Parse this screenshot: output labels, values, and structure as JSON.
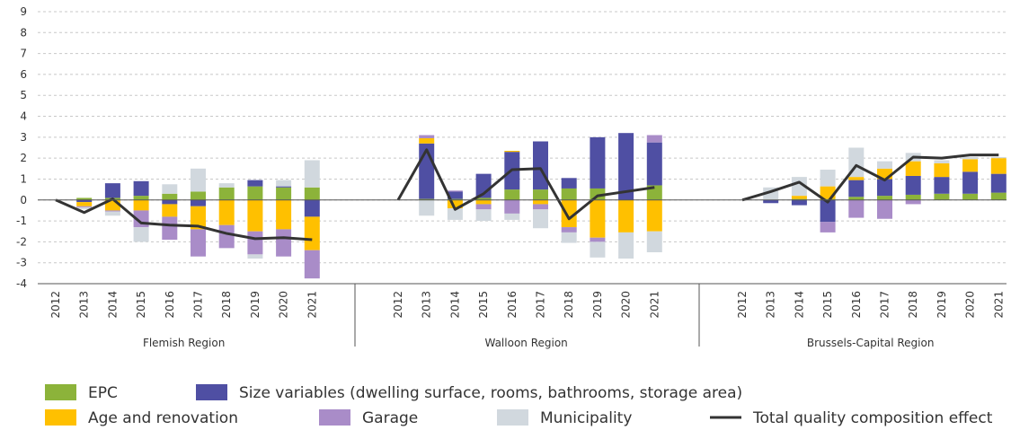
{
  "chart_data": {
    "type": "bar",
    "ylim": [
      -4,
      9
    ],
    "yticks": [
      -4,
      -3,
      -2,
      -1,
      0,
      1,
      2,
      3,
      4,
      5,
      6,
      7,
      8,
      9
    ],
    "grid": true,
    "series": [
      {
        "name": "EPC",
        "color": "#8cb33a",
        "type": "bar"
      },
      {
        "name": "Size variables (dwelling surface, rooms, bathrooms, storage area)",
        "color": "#4f4fa3",
        "type": "bar"
      },
      {
        "name": "Age and renovation",
        "color": "#ffc000",
        "type": "bar"
      },
      {
        "name": "Garage",
        "color": "#a98cc8",
        "type": "bar"
      },
      {
        "name": "Municipality",
        "color": "#d1d8de",
        "type": "bar"
      },
      {
        "name": "Total quality composition effect",
        "color": "#333333",
        "type": "line"
      }
    ],
    "groups": [
      {
        "name": "Flemish Region",
        "categories": [
          "2012",
          "2013",
          "2014",
          "2015",
          "2016",
          "2017",
          "2018",
          "2019",
          "2020",
          "2021"
        ],
        "series": [
          {
            "values": [
              0,
              0.1,
              0.1,
              0.2,
              0.3,
              0.4,
              0.6,
              0.65,
              0.6,
              0.6
            ]
          },
          {
            "values": [
              0,
              -0.1,
              0.7,
              0.7,
              -0.2,
              -0.3,
              0,
              0.3,
              0.05,
              -0.8
            ]
          },
          {
            "values": [
              0,
              -0.2,
              -0.5,
              -0.5,
              -0.6,
              -1.1,
              -1.2,
              -1.5,
              -1.4,
              -1.6
            ]
          },
          {
            "values": [
              0,
              -0.05,
              -0.05,
              -0.8,
              -1.1,
              -1.3,
              -1.1,
              -1.1,
              -1.3,
              -1.35
            ]
          },
          {
            "values": [
              0,
              -0.1,
              -0.2,
              -0.7,
              0.45,
              1.1,
              0.2,
              -0.2,
              0.3,
              1.3
            ]
          },
          {
            "values": [
              0,
              -0.6,
              0.05,
              -1.1,
              -1.2,
              -1.25,
              -1.6,
              -1.85,
              -1.8,
              -1.9
            ]
          }
        ]
      },
      {
        "name": "Walloon Region",
        "categories": [
          "2012",
          "2013",
          "2014",
          "2015",
          "2016",
          "2017",
          "2018",
          "2019",
          "2020",
          "2021"
        ],
        "series": [
          {
            "values": [
              0,
              0.05,
              0.05,
              0.1,
              0.5,
              0.5,
              0.55,
              0.55,
              0,
              0.7
            ]
          },
          {
            "values": [
              0,
              2.65,
              0.35,
              1.15,
              1.8,
              2.3,
              0.5,
              2.45,
              3.2,
              2.05
            ]
          },
          {
            "values": [
              0,
              0.25,
              -0.4,
              -0.2,
              0.05,
              -0.2,
              -1.3,
              -1.8,
              -1.55,
              -1.5
            ]
          },
          {
            "values": [
              0,
              0.15,
              0.05,
              -0.25,
              -0.65,
              -0.25,
              -0.25,
              -0.2,
              0,
              0.35
            ]
          },
          {
            "values": [
              0,
              -0.75,
              -0.55,
              -0.55,
              -0.3,
              -0.9,
              -0.5,
              -0.75,
              -1.25,
              -1
            ]
          },
          {
            "values": [
              0,
              2.4,
              -0.45,
              0.3,
              1.45,
              1.5,
              -0.9,
              0.2,
              0.4,
              0.6
            ]
          }
        ]
      },
      {
        "name": "Brussels-Capital Region",
        "categories": [
          "2012",
          "2013",
          "2014",
          "2015",
          "2016",
          "2017",
          "2018",
          "2019",
          "2020",
          "2021"
        ],
        "series": [
          {
            "values": [
              0,
              0,
              0.05,
              0.05,
              0.15,
              0.2,
              0.25,
              0.3,
              0.3,
              0.35
            ]
          },
          {
            "values": [
              0,
              -0.15,
              -0.25,
              -1.05,
              0.8,
              0.8,
              0.9,
              0.8,
              1.05,
              0.9
            ]
          },
          {
            "values": [
              0,
              0,
              0.15,
              0.6,
              0.15,
              0.5,
              0.7,
              0.65,
              0.6,
              0.75
            ]
          },
          {
            "values": [
              0,
              0,
              0,
              -0.5,
              -0.85,
              -0.9,
              -0.2,
              0,
              0,
              0
            ]
          },
          {
            "values": [
              0,
              0.6,
              0.9,
              0.8,
              1.4,
              0.35,
              0.4,
              0.15,
              0.1,
              0.05
            ]
          },
          {
            "values": [
              0,
              0.4,
              0.85,
              -0.1,
              1.65,
              0.95,
              2.05,
              2,
              2.15,
              2.15
            ]
          }
        ]
      }
    ]
  }
}
